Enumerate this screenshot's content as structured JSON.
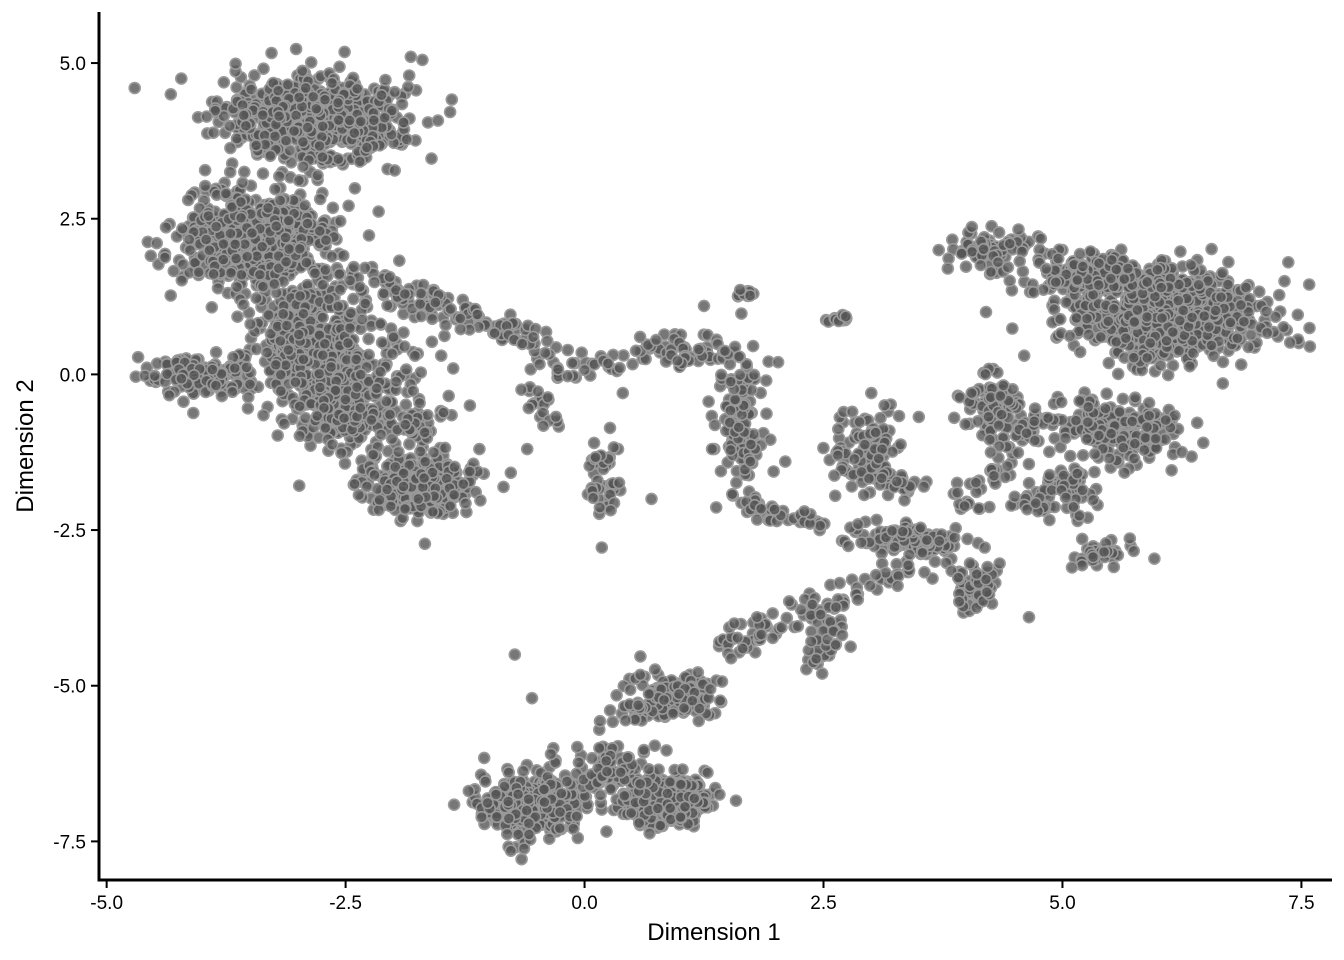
{
  "chart_data": {
    "type": "scatter",
    "title": "",
    "xlabel": "Dimension 1",
    "ylabel": "Dimension 2",
    "xlim": [
      -5.08,
      7.82
    ],
    "ylim": [
      -8.12,
      5.82
    ],
    "x_ticks": [
      -5.0,
      -2.5,
      0.0,
      2.5,
      5.0,
      7.5
    ],
    "x_tick_labels": [
      "-5.0",
      "-2.5",
      "0.0",
      "2.5",
      "5.0",
      "7.5"
    ],
    "y_ticks": [
      5.0,
      2.5,
      0.0,
      -2.5,
      -5.0,
      -7.5
    ],
    "y_tick_labels": [
      "5.0",
      "2.5",
      "0.0",
      "-2.5",
      "-5.0",
      "-7.5"
    ],
    "grid": false,
    "legend": "none",
    "point_fill": "#555555",
    "point_edge": "#9a9a9a",
    "clusters": [
      {
        "center": [
          -2.85,
          4.1
        ],
        "spread": [
          0.75,
          0.55
        ],
        "n": 700
      },
      {
        "center": [
          -3.4,
          2.2
        ],
        "spread": [
          0.65,
          0.75
        ],
        "n": 500
      },
      {
        "center": [
          -2.9,
          0.5
        ],
        "spread": [
          0.5,
          0.9
        ],
        "n": 420
      },
      {
        "center": [
          -4.0,
          0.0
        ],
        "spread": [
          0.4,
          0.25
        ],
        "n": 150
      },
      {
        "center": [
          -2.5,
          -0.6
        ],
        "spread": [
          0.35,
          0.5
        ],
        "n": 200
      },
      {
        "center": [
          -1.7,
          -1.8
        ],
        "spread": [
          0.45,
          0.35
        ],
        "n": 350
      },
      {
        "center": [
          -2.0,
          0.3
        ],
        "spread": [
          0.5,
          1.0
        ],
        "n": 70
      },
      {
        "center": [
          -1.7,
          -0.8
        ],
        "spread": [
          0.25,
          0.4
        ],
        "n": 40
      },
      {
        "center": [
          0.2,
          -1.6
        ],
        "spread": [
          0.15,
          0.45
        ],
        "n": 45
      },
      {
        "center": [
          0.95,
          0.4
        ],
        "spread": [
          0.45,
          0.25
        ],
        "n": 40
      },
      {
        "center": [
          1.6,
          -0.9
        ],
        "spread": [
          0.22,
          0.8
        ],
        "n": 110
      },
      {
        "center": [
          1.7,
          1.3
        ],
        "spread": [
          0.08,
          0.06
        ],
        "n": 10
      },
      {
        "center": [
          2.7,
          0.9
        ],
        "spread": [
          0.15,
          0.06
        ],
        "n": 12
      },
      {
        "center": [
          2.95,
          -1.2
        ],
        "spread": [
          0.3,
          0.45
        ],
        "n": 100
      },
      {
        "center": [
          3.5,
          -2.7
        ],
        "spread": [
          0.35,
          0.2
        ],
        "n": 80
      },
      {
        "center": [
          4.1,
          -3.4
        ],
        "spread": [
          0.18,
          0.35
        ],
        "n": 60
      },
      {
        "center": [
          4.3,
          2.05
        ],
        "spread": [
          0.4,
          0.2
        ],
        "n": 60
      },
      {
        "center": [
          4.3,
          -0.5
        ],
        "spread": [
          0.3,
          0.4
        ],
        "n": 90
      },
      {
        "center": [
          5.35,
          -2.9
        ],
        "spread": [
          0.25,
          0.15
        ],
        "n": 40
      },
      {
        "center": [
          6.1,
          0.9
        ],
        "spread": [
          0.85,
          0.6
        ],
        "n": 650
      },
      {
        "center": [
          5.5,
          1.6
        ],
        "spread": [
          0.6,
          0.25
        ],
        "n": 200
      },
      {
        "center": [
          5.6,
          -0.9
        ],
        "spread": [
          0.55,
          0.4
        ],
        "n": 220
      },
      {
        "center": [
          5.0,
          -1.8
        ],
        "spread": [
          0.35,
          0.3
        ],
        "n": 60
      },
      {
        "center": [
          0.95,
          -5.2
        ],
        "spread": [
          0.35,
          0.3
        ],
        "n": 140
      },
      {
        "center": [
          -0.55,
          -6.9
        ],
        "spread": [
          0.45,
          0.4
        ],
        "n": 330
      },
      {
        "center": [
          0.85,
          -6.85
        ],
        "spread": [
          0.4,
          0.35
        ],
        "n": 280
      },
      {
        "center": [
          0.3,
          -6.3
        ],
        "spread": [
          0.35,
          0.35
        ],
        "n": 80
      }
    ],
    "paths": [
      {
        "from": [
          -2.3,
          1.6
        ],
        "to": [
          -0.3,
          0.4
        ],
        "spread": 0.12,
        "n": 110
      },
      {
        "from": [
          -0.6,
          0.0
        ],
        "to": [
          0.5,
          0.2
        ],
        "spread": 0.12,
        "n": 30
      },
      {
        "from": [
          -0.6,
          -0.2
        ],
        "to": [
          -0.3,
          -0.8
        ],
        "spread": 0.1,
        "n": 18
      },
      {
        "from": [
          1.0,
          0.4
        ],
        "to": [
          1.8,
          0.1
        ],
        "spread": 0.12,
        "n": 30
      },
      {
        "from": [
          1.6,
          -2.1
        ],
        "to": [
          2.5,
          -2.4
        ],
        "spread": 0.08,
        "n": 40
      },
      {
        "from": [
          3.0,
          -1.6
        ],
        "to": [
          3.5,
          -1.9
        ],
        "spread": 0.08,
        "n": 25
      },
      {
        "from": [
          2.7,
          -2.55
        ],
        "to": [
          3.7,
          -2.6
        ],
        "spread": 0.1,
        "n": 40
      },
      {
        "from": [
          3.9,
          -2.2
        ],
        "to": [
          4.9,
          -0.5
        ],
        "spread": 0.12,
        "n": 60
      },
      {
        "from": [
          4.5,
          -2.0
        ],
        "to": [
          5.1,
          -2.3
        ],
        "spread": 0.08,
        "n": 20
      },
      {
        "from": [
          4.0,
          2.2
        ],
        "to": [
          4.7,
          1.3
        ],
        "spread": 0.15,
        "n": 30
      },
      {
        "from": [
          3.5,
          -3.0
        ],
        "to": [
          1.4,
          -4.4
        ],
        "spread": 0.12,
        "n": 90
      },
      {
        "from": [
          2.6,
          -3.8
        ],
        "to": [
          2.4,
          -4.7
        ],
        "spread": 0.12,
        "n": 40
      },
      {
        "from": [
          0.4,
          -5.6
        ],
        "to": [
          0.7,
          -4.6
        ],
        "spread": 0.12,
        "n": 20
      }
    ],
    "sparse_points": [
      [
        -1.67,
        -2.72
      ],
      [
        0.18,
        -2.78
      ],
      [
        -0.73,
        -4.5
      ],
      [
        -0.55,
        -5.2
      ],
      [
        0.7,
        -2.0
      ],
      [
        -1.1,
        -1.2
      ],
      [
        -2.1,
        1.3
      ],
      [
        -1.2,
        -0.5
      ],
      [
        -0.6,
        -1.2
      ],
      [
        0.4,
        -0.3
      ],
      [
        1.9,
        -0.1
      ],
      [
        2.1,
        -1.4
      ],
      [
        2.3,
        -2.2
      ],
      [
        3.9,
        -1.9
      ],
      [
        3.0,
        -0.3
      ],
      [
        4.05,
        -0.3
      ],
      [
        4.6,
        0.3
      ],
      [
        4.85,
        -0.7
      ],
      [
        3.55,
        -1.8
      ],
      [
        4.2,
        1.0
      ],
      [
        0.1,
        -1.1
      ],
      [
        -1.5,
        0.3
      ],
      [
        2.65,
        -1.3
      ],
      [
        5.1,
        -3.1
      ],
      [
        4.65,
        -3.9
      ],
      [
        -1.3,
        0.9
      ],
      [
        0.75,
        0.55
      ],
      [
        1.25,
        1.1
      ],
      [
        3.8,
        1.7
      ],
      [
        2.8,
        -0.6
      ]
    ]
  }
}
